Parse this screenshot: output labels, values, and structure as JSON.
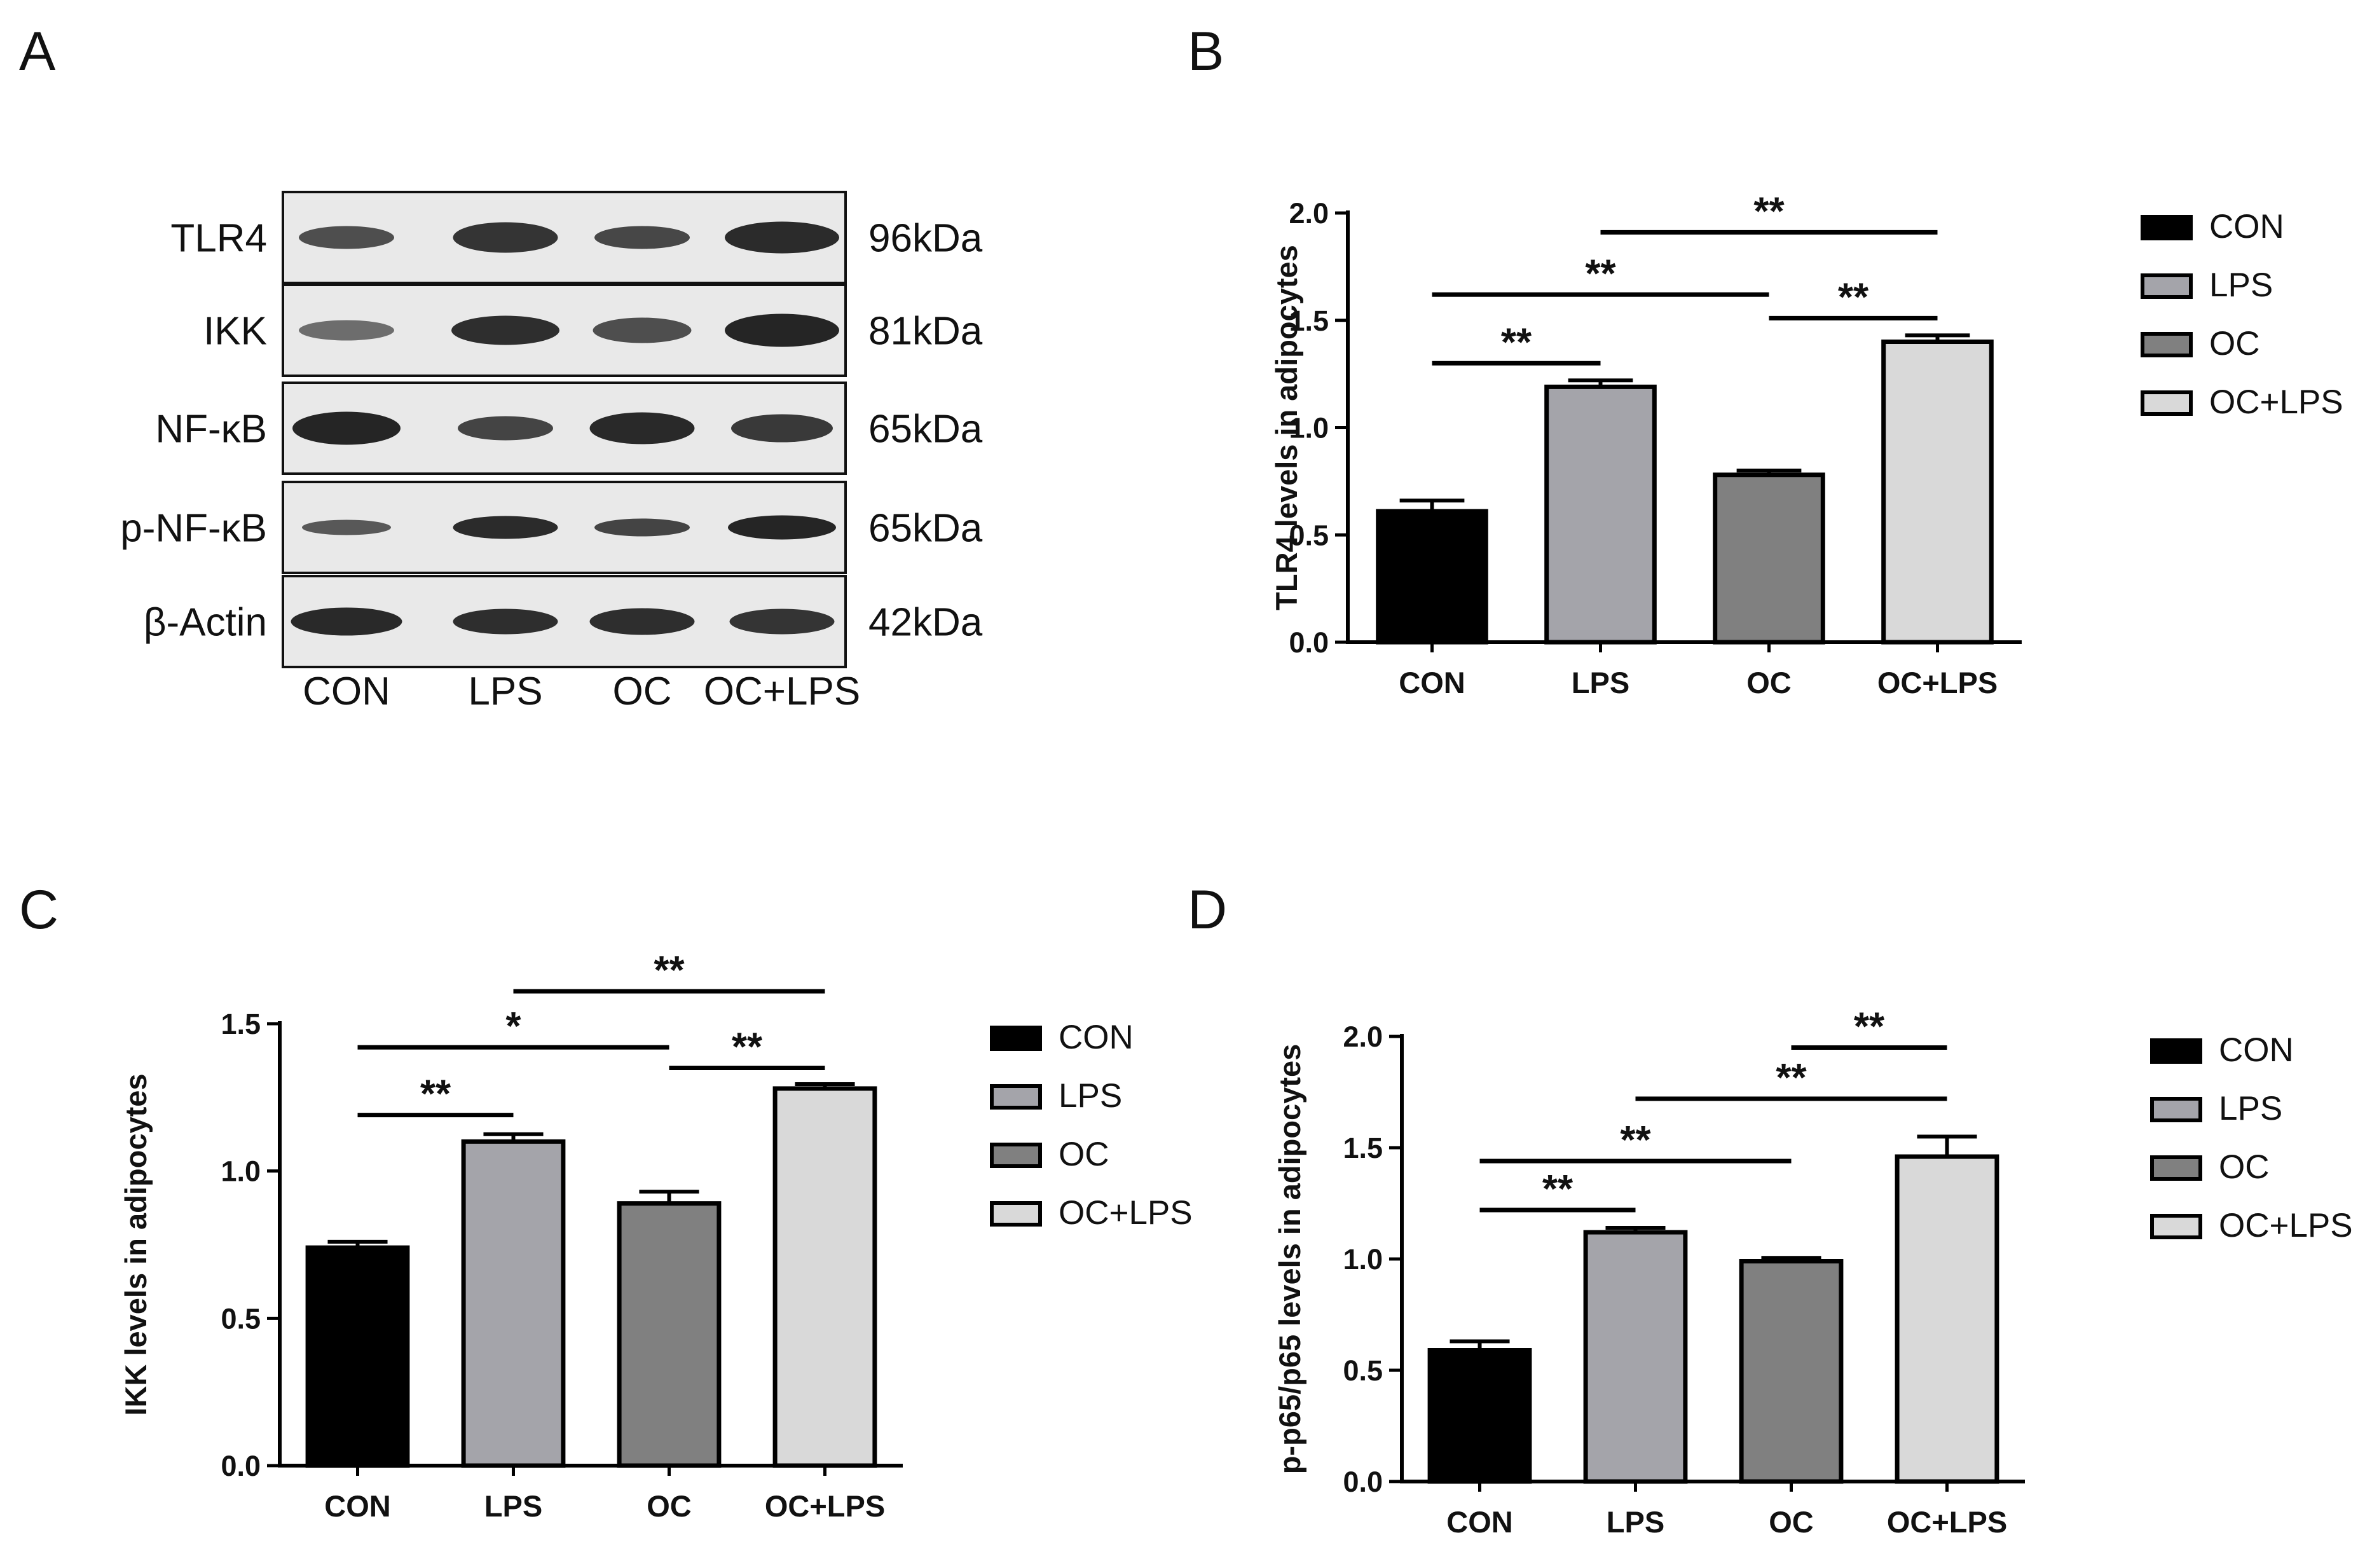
{
  "panel_labels": [
    "A",
    "B",
    "C",
    "D"
  ],
  "colors": {
    "CON": "#000000",
    "LPS": "#a4a4aa",
    "OC": "#808080",
    "OC+LPS": "#d9d9d9",
    "outline": "#000000"
  },
  "blot": {
    "proteins": [
      "TLR4",
      "IKK",
      "NF-κB",
      "p-NF-κB",
      "β-Actin"
    ],
    "weights": [
      "96kDa",
      "81kDa",
      "65kDa",
      "65kDa",
      "42kDa"
    ],
    "lanes": [
      "CON",
      "LPS",
      "OC",
      "OC+LPS"
    ]
  },
  "chart_data": [
    {
      "panel": "B",
      "type": "bar",
      "categories": [
        "CON",
        "LPS",
        "OC",
        "OC+LPS"
      ],
      "values": [
        0.61,
        1.19,
        0.78,
        1.4
      ],
      "errors": [
        0.05,
        0.03,
        0.02,
        0.03
      ],
      "ylabel": "TLR4 levels in adipocytes",
      "xlabel": "",
      "ylim": [
        0,
        2.0
      ],
      "yticks": [
        "0.0",
        "0.5",
        "1.0",
        "1.5",
        "2.0"
      ],
      "legend": [
        "CON",
        "LPS",
        "OC",
        "OC+LPS"
      ],
      "legend_position": "right",
      "significance": [
        {
          "from": 0,
          "to": 1,
          "label": "**",
          "y": 1.3
        },
        {
          "from": 0,
          "to": 2,
          "label": "**",
          "y": 1.62
        },
        {
          "from": 2,
          "to": 3,
          "label": "**",
          "y": 1.51
        },
        {
          "from": 1,
          "to": 3,
          "label": "**",
          "y": 1.91
        }
      ]
    },
    {
      "panel": "C",
      "type": "bar",
      "categories": [
        "CON",
        "LPS",
        "OC",
        "OC+LPS"
      ],
      "values": [
        0.74,
        1.1,
        0.89,
        1.28
      ],
      "errors": [
        0.02,
        0.025,
        0.04,
        0.015
      ],
      "ylabel": "IKK levels in adipocytes",
      "xlabel": "",
      "ylim": [
        0,
        1.5
      ],
      "yticks": [
        "0.0",
        "0.5",
        "1.0",
        "1.5"
      ],
      "legend": [
        "CON",
        "LPS",
        "OC",
        "OC+LPS"
      ],
      "legend_position": "right",
      "significance": [
        {
          "from": 0,
          "to": 1,
          "label": "**",
          "y": 1.19
        },
        {
          "from": 0,
          "to": 2,
          "label": "*",
          "y": 1.42
        },
        {
          "from": 2,
          "to": 3,
          "label": "**",
          "y": 1.35
        },
        {
          "from": 1,
          "to": 3,
          "label": "**",
          "y": 1.61
        }
      ]
    },
    {
      "panel": "D",
      "type": "bar",
      "categories": [
        "CON",
        "LPS",
        "OC",
        "OC+LPS"
      ],
      "values": [
        0.59,
        1.12,
        0.99,
        1.46
      ],
      "errors": [
        0.04,
        0.02,
        0.015,
        0.09
      ],
      "ylabel": "p-p65/p65 levels in adipocytes",
      "xlabel": "",
      "ylim": [
        0,
        2.0
      ],
      "yticks": [
        "0.0",
        "0.5",
        "1.0",
        "1.5",
        "2.0"
      ],
      "legend": [
        "CON",
        "LPS",
        "OC",
        "OC+LPS"
      ],
      "legend_position": "right",
      "significance": [
        {
          "from": 0,
          "to": 1,
          "label": "**",
          "y": 1.22
        },
        {
          "from": 0,
          "to": 2,
          "label": "**",
          "y": 1.44
        },
        {
          "from": 1,
          "to": 3,
          "label": "**",
          "y": 1.72
        },
        {
          "from": 2,
          "to": 3,
          "label": "**",
          "y": 1.95
        }
      ]
    }
  ]
}
